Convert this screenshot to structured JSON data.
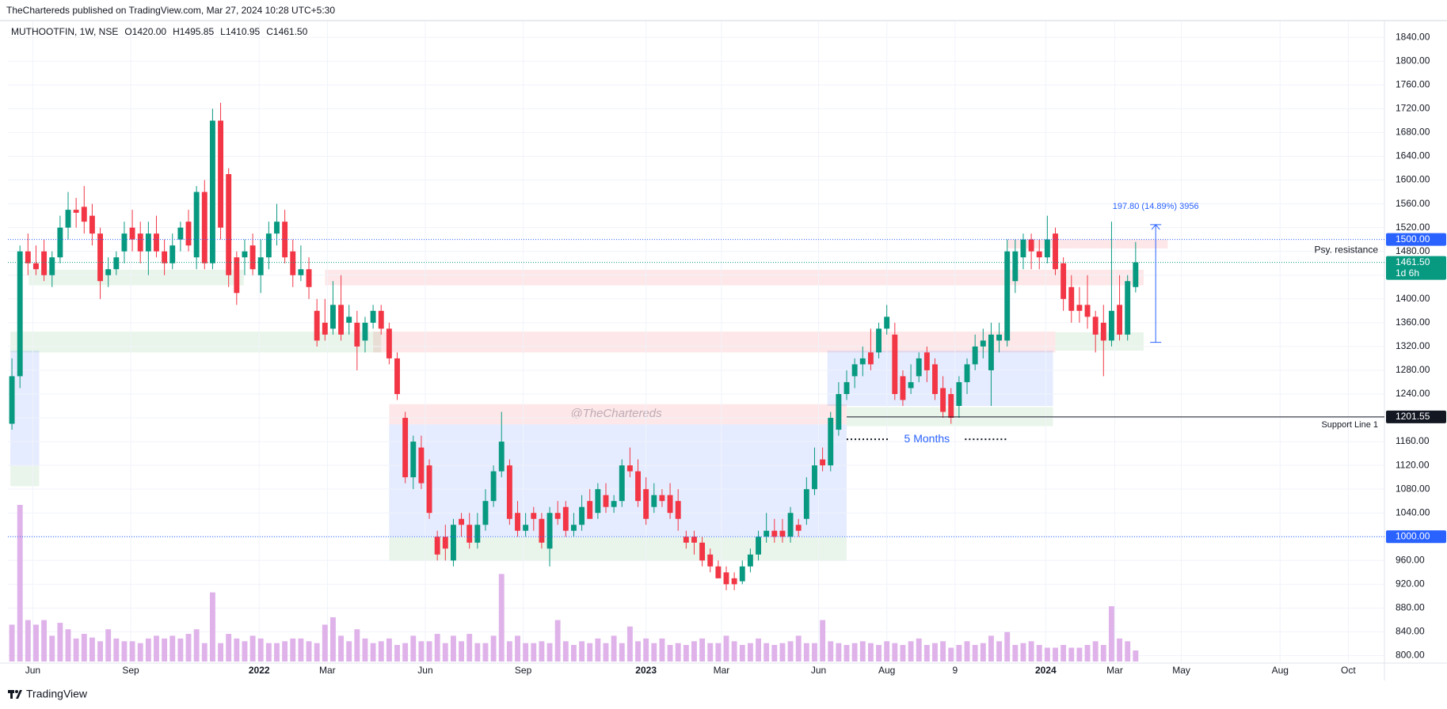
{
  "header": "TheChartereds published on TradingView.com, Mar 27, 2024 10:28 UTC+5:30",
  "footer": "TradingView",
  "chart_data": {
    "type": "candlestick",
    "symbol": "MUTHOOTFIN, 1W, NSE",
    "ohlc_legend": [
      {
        "key": "O",
        "value": "1420.00"
      },
      {
        "key": "H",
        "value": "1495.85"
      },
      {
        "key": "L",
        "value": "1410.95"
      },
      {
        "key": "C",
        "value": "1461.50"
      }
    ],
    "up_color": "#089981",
    "down_color": "#f23645",
    "volume_color": "#dfb3ea",
    "candles": [
      [
        1190,
        1300,
        1180,
        1270
      ],
      [
        1270,
        1490,
        1250,
        1480
      ],
      [
        1480,
        1510,
        1440,
        1460
      ],
      [
        1460,
        1490,
        1440,
        1450
      ],
      [
        1480,
        1500,
        1430,
        1440
      ],
      [
        1440,
        1480,
        1420,
        1470
      ],
      [
        1470,
        1540,
        1460,
        1520
      ],
      [
        1520,
        1580,
        1500,
        1550
      ],
      [
        1550,
        1570,
        1520,
        1545
      ],
      [
        1555,
        1590,
        1510,
        1530
      ],
      [
        1540,
        1560,
        1490,
        1510
      ],
      [
        1510,
        1520,
        1400,
        1430
      ],
      [
        1440,
        1470,
        1420,
        1450
      ],
      [
        1450,
        1480,
        1440,
        1470
      ],
      [
        1480,
        1530,
        1460,
        1510
      ],
      [
        1520,
        1550,
        1480,
        1500
      ],
      [
        1510,
        1530,
        1460,
        1480
      ],
      [
        1480,
        1530,
        1440,
        1510
      ],
      [
        1510,
        1540,
        1470,
        1480
      ],
      [
        1480,
        1500,
        1440,
        1460
      ],
      [
        1460,
        1510,
        1450,
        1490
      ],
      [
        1500,
        1530,
        1480,
        1520
      ],
      [
        1530,
        1550,
        1480,
        1490
      ],
      [
        1470,
        1590,
        1450,
        1580
      ],
      [
        1580,
        1600,
        1450,
        1460
      ],
      [
        1460,
        1720,
        1450,
        1700
      ],
      [
        1700,
        1730,
        1500,
        1520
      ],
      [
        1610,
        1620,
        1420,
        1440
      ],
      [
        1470,
        1480,
        1390,
        1410
      ],
      [
        1470,
        1500,
        1440,
        1480
      ],
      [
        1490,
        1510,
        1440,
        1450
      ],
      [
        1440,
        1500,
        1410,
        1470
      ],
      [
        1470,
        1530,
        1450,
        1510
      ],
      [
        1510,
        1560,
        1490,
        1530
      ],
      [
        1530,
        1550,
        1460,
        1470
      ],
      [
        1480,
        1500,
        1420,
        1440
      ],
      [
        1440,
        1490,
        1430,
        1450
      ],
      [
        1450,
        1470,
        1400,
        1420
      ],
      [
        1380,
        1400,
        1320,
        1330
      ],
      [
        1360,
        1400,
        1330,
        1340
      ],
      [
        1350,
        1430,
        1340,
        1390
      ],
      [
        1390,
        1440,
        1330,
        1340
      ],
      [
        1360,
        1390,
        1340,
        1370
      ],
      [
        1360,
        1380,
        1280,
        1320
      ],
      [
        1330,
        1370,
        1310,
        1360
      ],
      [
        1360,
        1390,
        1350,
        1380
      ],
      [
        1380,
        1390,
        1340,
        1350
      ],
      [
        1350,
        1360,
        1290,
        1300
      ],
      [
        1300,
        1310,
        1230,
        1240
      ],
      [
        1200,
        1210,
        1090,
        1100
      ],
      [
        1100,
        1170,
        1080,
        1160
      ],
      [
        1150,
        1170,
        1080,
        1090
      ],
      [
        1120,
        1130,
        1030,
        1040
      ],
      [
        1000,
        1010,
        960,
        970
      ],
      [
        1000,
        1020,
        960,
        980
      ],
      [
        960,
        1030,
        950,
        1020
      ],
      [
        1030,
        1040,
        1000,
        1020
      ],
      [
        1020,
        1040,
        980,
        990
      ],
      [
        990,
        1040,
        980,
        1020
      ],
      [
        1020,
        1080,
        1010,
        1060
      ],
      [
        1060,
        1120,
        1050,
        1110
      ],
      [
        1110,
        1210,
        1100,
        1160
      ],
      [
        1120,
        1130,
        1020,
        1030
      ],
      [
        1040,
        1060,
        1000,
        1010
      ],
      [
        1010,
        1040,
        1000,
        1020
      ],
      [
        1040,
        1050,
        1010,
        1030
      ],
      [
        1030,
        1040,
        980,
        990
      ],
      [
        980,
        1050,
        950,
        1040
      ],
      [
        1040,
        1060,
        1020,
        1030
      ],
      [
        1050,
        1060,
        1000,
        1010
      ],
      [
        1010,
        1040,
        1000,
        1020
      ],
      [
        1020,
        1070,
        1010,
        1050
      ],
      [
        1060,
        1080,
        1030,
        1030
      ],
      [
        1040,
        1090,
        1030,
        1080
      ],
      [
        1070,
        1090,
        1040,
        1050
      ],
      [
        1050,
        1070,
        1040,
        1060
      ],
      [
        1060,
        1130,
        1050,
        1120
      ],
      [
        1120,
        1150,
        1100,
        1110
      ],
      [
        1110,
        1130,
        1050,
        1060
      ],
      [
        1080,
        1100,
        1020,
        1030
      ],
      [
        1050,
        1090,
        1040,
        1070
      ],
      [
        1070,
        1080,
        1050,
        1060
      ],
      [
        1070,
        1090,
        1030,
        1040
      ],
      [
        1060,
        1080,
        1010,
        1030
      ],
      [
        1000,
        1010,
        980,
        990
      ],
      [
        1000,
        1010,
        970,
        990
      ],
      [
        990,
        1000,
        950,
        960
      ],
      [
        970,
        980,
        940,
        950
      ],
      [
        950,
        960,
        930,
        930
      ],
      [
        940,
        950,
        910,
        920
      ],
      [
        930,
        940,
        910,
        920
      ],
      [
        925,
        960,
        920,
        950
      ],
      [
        950,
        980,
        940,
        970
      ],
      [
        970,
        1010,
        960,
        1000
      ],
      [
        1000,
        1040,
        990,
        1010
      ],
      [
        1010,
        1030,
        990,
        1000
      ],
      [
        1010,
        1030,
        990,
        1000
      ],
      [
        1000,
        1050,
        990,
        1040
      ],
      [
        1020,
        1030,
        1000,
        1010
      ],
      [
        1030,
        1100,
        1020,
        1080
      ],
      [
        1080,
        1150,
        1070,
        1120
      ],
      [
        1130,
        1150,
        1110,
        1120
      ],
      [
        1120,
        1210,
        1110,
        1200
      ],
      [
        1180,
        1260,
        1170,
        1240
      ],
      [
        1240,
        1280,
        1230,
        1260
      ],
      [
        1270,
        1300,
        1250,
        1290
      ],
      [
        1290,
        1320,
        1270,
        1300
      ],
      [
        1310,
        1350,
        1280,
        1290
      ],
      [
        1310,
        1360,
        1300,
        1350
      ],
      [
        1350,
        1390,
        1340,
        1370
      ],
      [
        1340,
        1360,
        1230,
        1240
      ],
      [
        1270,
        1280,
        1220,
        1230
      ],
      [
        1250,
        1290,
        1240,
        1260
      ],
      [
        1270,
        1310,
        1260,
        1300
      ],
      [
        1310,
        1320,
        1260,
        1280
      ],
      [
        1290,
        1300,
        1230,
        1240
      ],
      [
        1250,
        1270,
        1200,
        1210
      ],
      [
        1240,
        1250,
        1190,
        1200
      ],
      [
        1220,
        1270,
        1200,
        1260
      ],
      [
        1260,
        1300,
        1240,
        1290
      ],
      [
        1290,
        1340,
        1280,
        1320
      ],
      [
        1320,
        1350,
        1300,
        1330
      ],
      [
        1280,
        1360,
        1220,
        1340
      ],
      [
        1330,
        1360,
        1310,
        1340
      ],
      [
        1330,
        1500,
        1320,
        1480
      ],
      [
        1430,
        1500,
        1410,
        1480
      ],
      [
        1470,
        1510,
        1450,
        1500
      ],
      [
        1500,
        1510,
        1450,
        1480
      ],
      [
        1480,
        1500,
        1450,
        1470
      ],
      [
        1470,
        1540,
        1460,
        1500
      ],
      [
        1510,
        1520,
        1440,
        1450
      ],
      [
        1460,
        1470,
        1380,
        1400
      ],
      [
        1420,
        1440,
        1360,
        1380
      ],
      [
        1390,
        1420,
        1360,
        1380
      ],
      [
        1390,
        1440,
        1350,
        1370
      ],
      [
        1370,
        1380,
        1310,
        1340
      ],
      [
        1360,
        1390,
        1270,
        1330
      ],
      [
        1330,
        1530,
        1320,
        1380
      ],
      [
        1390,
        1440,
        1330,
        1340
      ],
      [
        1340,
        1440,
        1330,
        1430
      ],
      [
        1420,
        1495.85,
        1410.95,
        1461.5
      ]
    ],
    "volume": [
      40,
      170,
      45,
      40,
      45,
      28,
      42,
      35,
      25,
      30,
      26,
      22,
      35,
      25,
      22,
      22,
      20,
      25,
      28,
      25,
      28,
      25,
      30,
      35,
      20,
      75,
      20,
      30,
      25,
      22,
      28,
      25,
      20,
      20,
      22,
      25,
      25,
      22,
      20,
      40,
      48,
      28,
      22,
      35,
      25,
      20,
      22,
      25,
      18,
      20,
      28,
      22,
      22,
      30,
      20,
      28,
      22,
      30,
      20,
      20,
      28,
      95,
      22,
      28,
      20,
      20,
      22,
      20,
      45,
      22,
      18,
      22,
      20,
      25,
      20,
      28,
      20,
      38,
      22,
      25,
      20,
      25,
      18,
      20,
      18,
      22,
      25,
      20,
      20,
      28,
      22,
      18,
      20,
      25,
      20,
      18,
      20,
      22,
      28,
      20,
      20,
      45,
      22,
      20,
      18,
      20,
      22,
      20,
      18,
      22,
      20,
      18,
      22,
      25,
      18,
      20,
      22,
      15,
      18,
      22,
      18,
      20,
      28,
      22,
      32,
      18,
      20,
      22,
      18,
      15,
      15,
      18,
      15,
      15,
      18,
      22,
      18,
      60,
      25,
      22,
      12
    ],
    "xlim": [
      -0.5,
      171
    ],
    "xticks": [
      {
        "value": 2.6,
        "label": "Jun"
      },
      {
        "value": 14.8,
        "label": "Sep"
      },
      {
        "value": 30.8,
        "label": "2022"
      },
      {
        "value": 39.3,
        "label": "Mar"
      },
      {
        "value": 51.5,
        "label": "Jun"
      },
      {
        "value": 63.7,
        "label": "Sep"
      },
      {
        "value": 79,
        "label": "2023"
      },
      {
        "value": 88.4,
        "label": "Mar"
      },
      {
        "value": 100.5,
        "label": "Jun"
      },
      {
        "value": 109,
        "label": "Aug"
      },
      {
        "value": 117.5,
        "label": "9"
      },
      {
        "value": 128.8,
        "label": "2024"
      },
      {
        "value": 137.4,
        "label": "Mar"
      },
      {
        "value": 145.7,
        "label": "May"
      },
      {
        "value": 158,
        "label": "Aug"
      },
      {
        "value": 166.5,
        "label": "Oct"
      }
    ],
    "ylim": [
      790,
      1867
    ],
    "yticks": [
      {
        "value": 800,
        "label": "800.00"
      },
      {
        "value": 840,
        "label": "840.00"
      },
      {
        "value": 880,
        "label": "880.00"
      },
      {
        "value": 920,
        "label": "920.00"
      },
      {
        "value": 960,
        "label": "960.00"
      },
      {
        "value": 1000,
        "label": "1000.00"
      },
      {
        "value": 1040,
        "label": "1040.00"
      },
      {
        "value": 1080,
        "label": "1080.00"
      },
      {
        "value": 1120,
        "label": "1120.00"
      },
      {
        "value": 1160,
        "label": "1160.00"
      },
      {
        "value": 1200,
        "label": "1200.00"
      },
      {
        "value": 1240,
        "label": "1240.00"
      },
      {
        "value": 1280,
        "label": "1280.00"
      },
      {
        "value": 1320,
        "label": "1320.00"
      },
      {
        "value": 1360,
        "label": "1360.00"
      },
      {
        "value": 1400,
        "label": "1400.00"
      },
      {
        "value": 1440,
        "label": "1440.00"
      },
      {
        "value": 1480,
        "label": "1480.00"
      },
      {
        "value": 1520,
        "label": "1520.00"
      },
      {
        "value": 1560,
        "label": "1560.00"
      },
      {
        "value": 1600,
        "label": "1600.00"
      },
      {
        "value": 1640,
        "label": "1640.00"
      },
      {
        "value": 1680,
        "label": "1680.00"
      },
      {
        "value": 1720,
        "label": "1720.00"
      },
      {
        "value": 1760,
        "label": "1760.00"
      },
      {
        "value": 1800,
        "label": "1800.00"
      },
      {
        "value": 1840,
        "label": "1840.00"
      }
    ],
    "grid": true,
    "zones": [
      {
        "x": [
          2.1,
          28.9
        ],
        "y": [
          1423,
          1449
        ],
        "color": "#4caf50"
      },
      {
        "x": [
          39,
          141
        ],
        "y": [
          1423,
          1449
        ],
        "color": "#f23645"
      },
      {
        "x": [
          124,
          144
        ],
        "y": [
          1485,
          1500
        ],
        "color": "#f23645"
      },
      {
        "x": [
          -0.2,
          46
        ],
        "y": [
          1310,
          1345
        ],
        "color": "#4caf50"
      },
      {
        "x": [
          45,
          130
        ],
        "y": [
          1310,
          1345
        ],
        "color": "#f23645"
      },
      {
        "x": [
          130,
          141
        ],
        "y": [
          1313,
          1344
        ],
        "color": "#4caf50"
      },
      {
        "x": [
          -0.2,
          3.4
        ],
        "y": [
          1119,
          1313
        ],
        "color": "#2962ff"
      },
      {
        "x": [
          -0.2,
          3.4
        ],
        "y": [
          1085,
          1119
        ],
        "color": "#4caf50"
      },
      {
        "x": [
          47,
          104
        ],
        "y": [
          1189,
          1223
        ],
        "color": "#f23645"
      },
      {
        "x": [
          47,
          104
        ],
        "y": [
          1000,
          1189
        ],
        "color": "#2962ff"
      },
      {
        "x": [
          47,
          104
        ],
        "y": [
          959,
          1000
        ],
        "color": "#4caf50"
      },
      {
        "x": [
          101.6,
          129.7
        ],
        "y": [
          1220,
          1313
        ],
        "color": "#2962ff"
      },
      {
        "x": [
          104,
          129.7
        ],
        "y": [
          1186,
          1218
        ],
        "color": "#4caf50"
      }
    ],
    "price_lines": [
      {
        "value": 1500,
        "label": "1500.00",
        "color": "#2962ff"
      },
      {
        "value": 1461.5,
        "label": "1461.50",
        "sublabel": "1d 6h",
        "color": "#089981"
      },
      {
        "value": 1000,
        "label": "1000.00",
        "color": "#2962ff"
      }
    ],
    "support": {
      "value": 1201.55,
      "label": "1201.55",
      "text": "Support Line 1",
      "from": 104,
      "color": "#131722"
    },
    "resistance_note": {
      "text": "Psy. resistance",
      "y": 1482
    },
    "range_note": {
      "text": "5 Months",
      "x": [
        104,
        124
      ],
      "y": 1164,
      "color": "#2962ff"
    },
    "measure": {
      "label": "197.80 (14.89%) 3956",
      "x": 142.5,
      "y": [
        1327,
        1525
      ],
      "color": "#2962ff"
    },
    "watermark": "@TheChartereds"
  }
}
